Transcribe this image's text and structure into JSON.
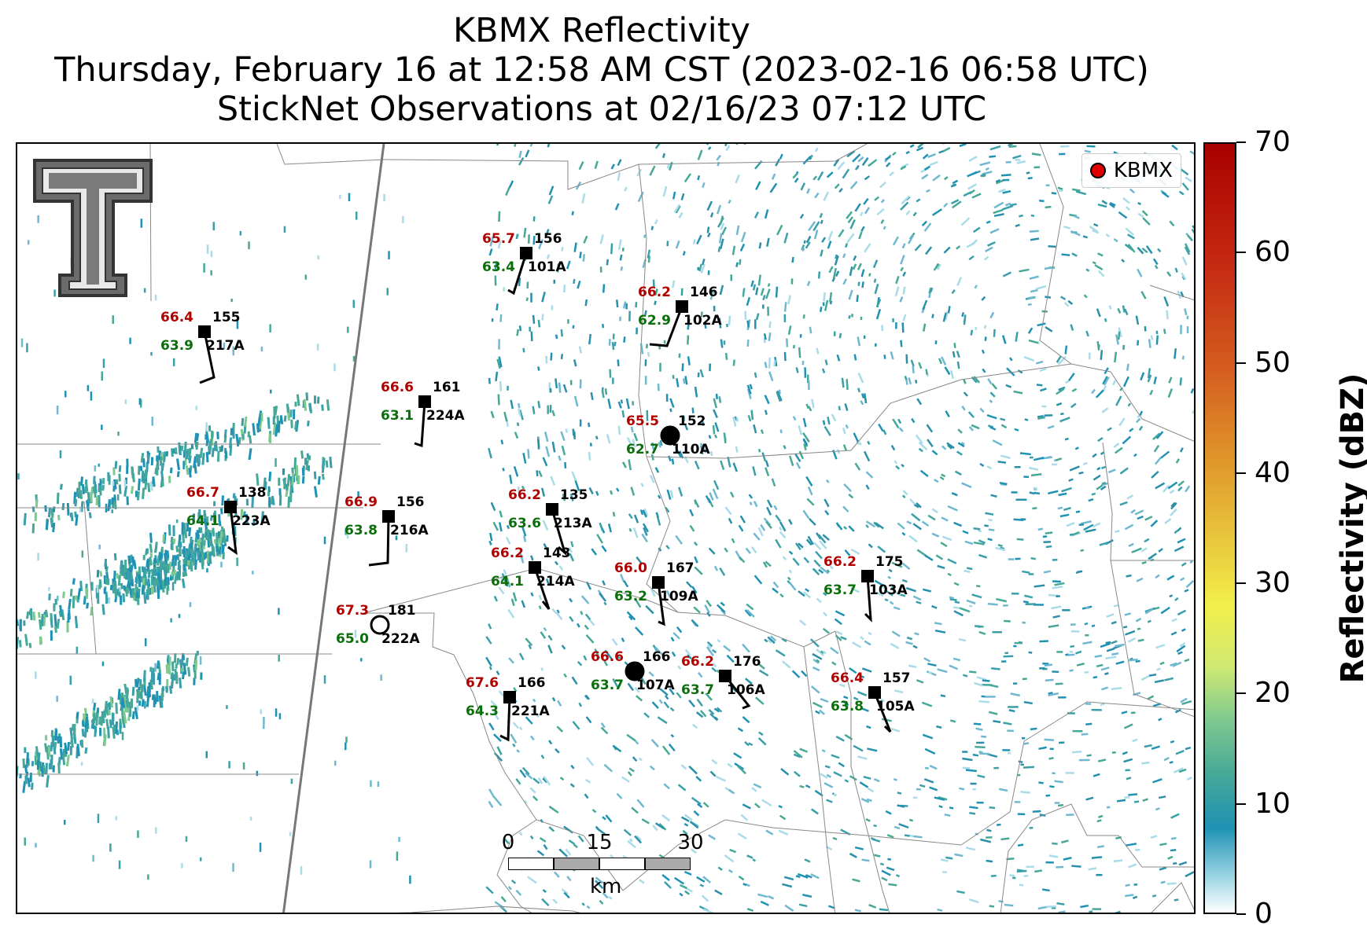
{
  "title": {
    "line1": "KBMX Reflectivity",
    "line2": "Thursday, February 16 at 12:58 AM CST (2023-02-16 06:58 UTC)",
    "line3": "StickNet Observations at 02/16/23 07:12 UTC"
  },
  "legend": {
    "label": "KBMX",
    "marker_color": "#e00000"
  },
  "scalebar": {
    "ticks": [
      "0",
      "15",
      "30"
    ],
    "unit": "km"
  },
  "colorbar": {
    "label": "Reflectivity (dBZ)",
    "ticks": [
      "0",
      "10",
      "20",
      "30",
      "40",
      "50",
      "60",
      "70"
    ],
    "range": [
      0,
      70
    ]
  },
  "logo": {
    "name": "Texas Tech double-T logo"
  },
  "stations": [
    {
      "id": "101A",
      "temp": "65.7",
      "dew": "63.4",
      "wdir": "156",
      "marker": "square"
    },
    {
      "id": "102A",
      "temp": "66.2",
      "dew": "62.9",
      "wdir": "146",
      "marker": "square"
    },
    {
      "id": "217A",
      "temp": "66.4",
      "dew": "63.9",
      "wdir": "155",
      "marker": "square"
    },
    {
      "id": "224A",
      "temp": "66.6",
      "dew": "63.1",
      "wdir": "161",
      "marker": "square"
    },
    {
      "id": "110A",
      "temp": "65.5",
      "dew": "62.7",
      "wdir": "152",
      "marker": "circle"
    },
    {
      "id": "223A",
      "temp": "66.7",
      "dew": "64.1",
      "wdir": "138",
      "marker": "square"
    },
    {
      "id": "216A",
      "temp": "66.9",
      "dew": "63.8",
      "wdir": "156",
      "marker": "square"
    },
    {
      "id": "213A",
      "temp": "66.2",
      "dew": "63.6",
      "wdir": "135",
      "marker": "square"
    },
    {
      "id": "214A",
      "temp": "66.2",
      "dew": "64.1",
      "wdir": "143",
      "marker": "square"
    },
    {
      "id": "109A",
      "temp": "66.0",
      "dew": "63.2",
      "wdir": "167",
      "marker": "square"
    },
    {
      "id": "103A",
      "temp": "66.2",
      "dew": "63.7",
      "wdir": "175",
      "marker": "square"
    },
    {
      "id": "222A",
      "temp": "67.3",
      "dew": "65.0",
      "wdir": "181",
      "marker": "circle-open"
    },
    {
      "id": "107A",
      "temp": "66.6",
      "dew": "63.7",
      "wdir": "166",
      "marker": "circle"
    },
    {
      "id": "106A",
      "temp": "66.2",
      "dew": "63.7",
      "wdir": "176",
      "marker": "square"
    },
    {
      "id": "105A",
      "temp": "66.4",
      "dew": "63.8",
      "wdir": "157",
      "marker": "square"
    },
    {
      "id": "221A",
      "temp": "67.6",
      "dew": "64.3",
      "wdir": "166",
      "marker": "square"
    }
  ]
}
